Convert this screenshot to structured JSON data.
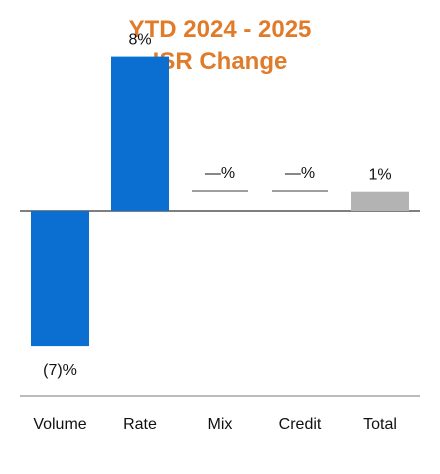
{
  "chart_data": {
    "type": "bar",
    "title": [
      "YTD  2024 - 2025",
      "ISR Change"
    ],
    "xlabel": "",
    "ylabel": "",
    "categories": [
      "Volume",
      "Rate",
      "Mix",
      "Credit",
      "Total"
    ],
    "values": [
      -7,
      8,
      0,
      0,
      1
    ],
    "data_labels": [
      "(7)%",
      "8%",
      "—%",
      "—%",
      "1%"
    ],
    "bar_colors": [
      "#0A6FD1",
      "#0A6FD1",
      "#7F7F7F",
      "#7F7F7F",
      "#B3B3B3"
    ],
    "zero_line_color": "#7F7F7F",
    "title_color": "#E07B2A",
    "grid": false,
    "legend": "none"
  }
}
